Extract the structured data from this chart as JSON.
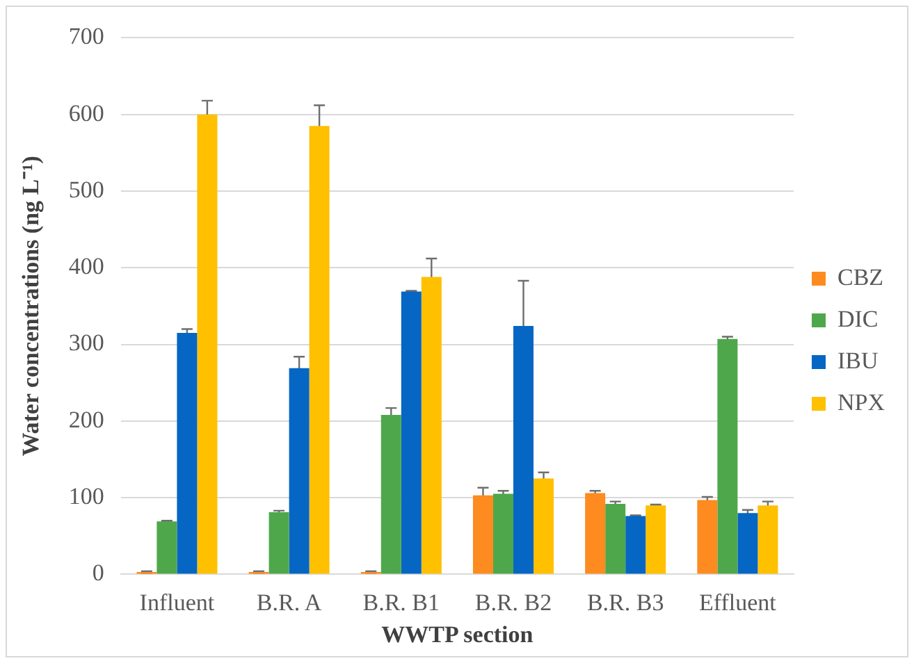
{
  "chart_data": {
    "type": "bar",
    "xlabel": "WWTP section",
    "ylabel": "Water concentrations (ng L⁻¹)",
    "categories": [
      "Influent",
      "B.R. A",
      "B.R. B1",
      "B.R. B2",
      "B.R. B3",
      "Effluent"
    ],
    "series": [
      {
        "name": "CBZ",
        "color": "#fd8b1f",
        "values": [
          3,
          3,
          3,
          103,
          106,
          97
        ],
        "errors": [
          1,
          1,
          1,
          10,
          3,
          4
        ]
      },
      {
        "name": "DIC",
        "color": "#4ea84b",
        "values": [
          69,
          81,
          208,
          105,
          92,
          307
        ],
        "errors": [
          1,
          2,
          9,
          4,
          3,
          3
        ]
      },
      {
        "name": "IBU",
        "color": "#0566c4",
        "values": [
          315,
          269,
          369,
          324,
          76,
          80
        ],
        "errors": [
          5,
          15,
          1,
          59,
          1,
          4
        ]
      },
      {
        "name": "NPX",
        "color": "#ffc000",
        "values": [
          600,
          585,
          388,
          125,
          90,
          90
        ],
        "errors": [
          18,
          27,
          24,
          8,
          1,
          5
        ]
      }
    ],
    "ylim": [
      0,
      700
    ],
    "yticks": [
      0,
      100,
      200,
      300,
      400,
      500,
      600,
      700
    ],
    "grid": "y",
    "legend": "right"
  }
}
